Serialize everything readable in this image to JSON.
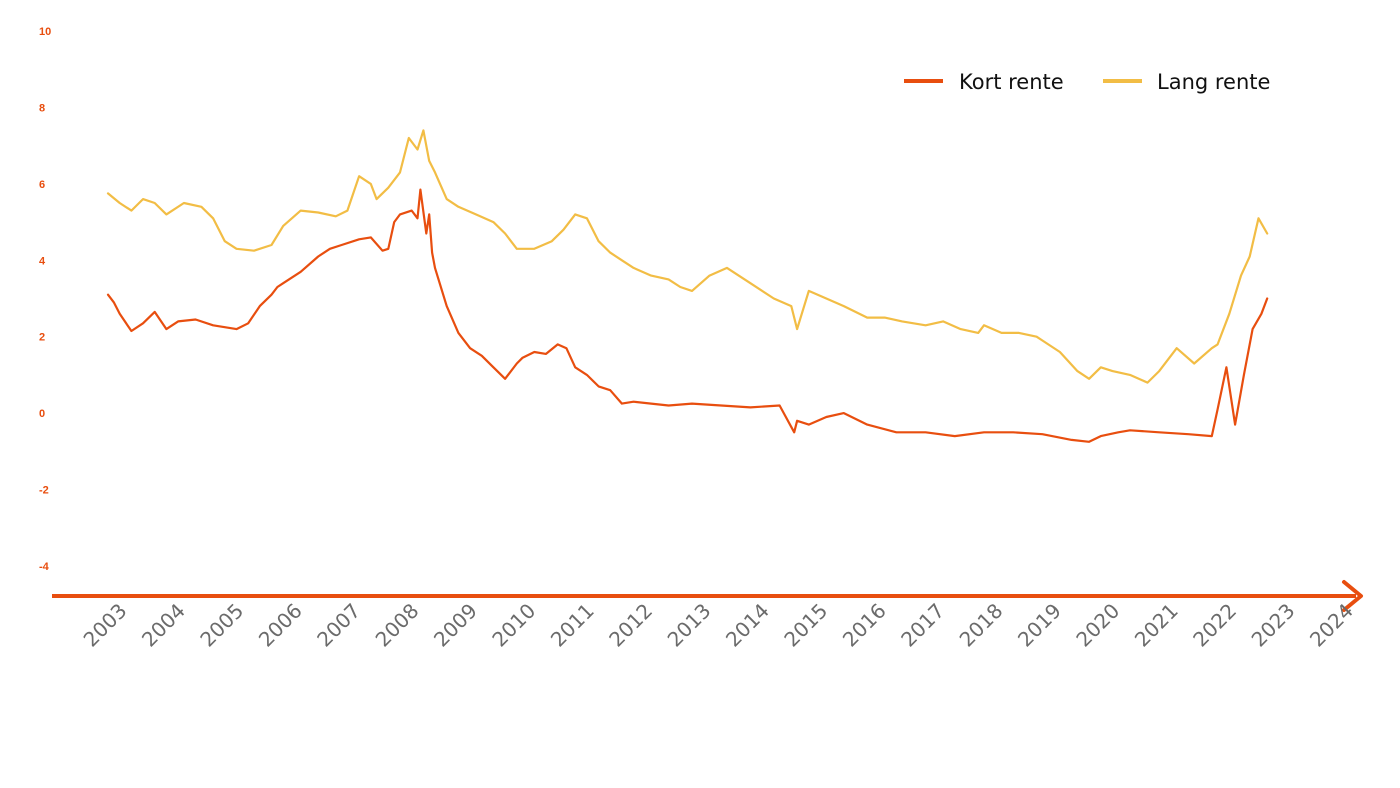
{
  "colors": {
    "accent": "#e84e0f",
    "kort": "#e84e0f",
    "lang": "#f2bd45",
    "x_tick_text": "#6b6b6b"
  },
  "chart_data": {
    "type": "line",
    "title": "",
    "xlabel": "",
    "ylabel": "",
    "ylim": [
      -4,
      10
    ],
    "xlim": [
      2003,
      2024
    ],
    "y_ticks": [
      "10",
      "8",
      "6",
      "4",
      "2",
      "0",
      "-2",
      "-4"
    ],
    "x_ticks": [
      "2003",
      "2004",
      "2005",
      "2006",
      "2007",
      "2008",
      "2009",
      "2010",
      "2011",
      "2012",
      "2013",
      "2014",
      "2015",
      "2016",
      "2017",
      "2018",
      "2019",
      "2020",
      "2021",
      "2022",
      "2023",
      "2024"
    ],
    "grid": false,
    "legend_position": "top-right",
    "series": [
      {
        "name": "Kort rente",
        "color": "#e84e0f",
        "x": [
          2003.0,
          2003.1,
          2003.2,
          2003.4,
          2003.6,
          2003.8,
          2004.0,
          2004.2,
          2004.5,
          2004.8,
          2005.0,
          2005.2,
          2005.4,
          2005.6,
          2005.8,
          2005.9,
          2006.0,
          2006.3,
          2006.6,
          2006.8,
          2007.0,
          2007.3,
          2007.5,
          2007.7,
          2007.8,
          2007.9,
          2008.0,
          2008.2,
          2008.3,
          2008.35,
          2008.45,
          2008.5,
          2008.55,
          2008.6,
          2008.8,
          2009.0,
          2009.2,
          2009.4,
          2009.6,
          2009.8,
          2010.0,
          2010.1,
          2010.3,
          2010.5,
          2010.7,
          2010.85,
          2011.0,
          2011.2,
          2011.4,
          2011.6,
          2011.8,
          2012.0,
          2012.3,
          2012.6,
          2013.0,
          2013.5,
          2014.0,
          2014.5,
          2014.75,
          2014.8,
          2015.0,
          2015.3,
          2015.6,
          2016.0,
          2016.5,
          2017.0,
          2017.5,
          2018.0,
          2018.5,
          2019.0,
          2019.5,
          2019.8,
          2020.0,
          2020.3,
          2020.5,
          2021.0,
          2021.5,
          2021.9,
          2022.0,
          2022.15,
          2022.3,
          2022.45,
          2022.6,
          2022.75,
          2022.85
        ],
        "values": [
          3.1,
          2.9,
          2.6,
          2.15,
          2.35,
          2.65,
          2.2,
          2.4,
          2.45,
          2.3,
          2.25,
          2.2,
          2.35,
          2.8,
          3.1,
          3.3,
          3.4,
          3.7,
          4.1,
          4.3,
          4.4,
          4.55,
          4.6,
          4.25,
          4.3,
          5.0,
          5.2,
          5.3,
          5.1,
          5.85,
          4.7,
          5.2,
          4.2,
          3.8,
          2.8,
          2.1,
          1.7,
          1.5,
          1.2,
          0.9,
          1.3,
          1.45,
          1.6,
          1.55,
          1.8,
          1.7,
          1.2,
          1.0,
          0.7,
          0.6,
          0.25,
          0.3,
          0.25,
          0.2,
          0.25,
          0.2,
          0.15,
          0.2,
          -0.5,
          -0.2,
          -0.3,
          -0.1,
          0.0,
          -0.3,
          -0.5,
          -0.5,
          -0.6,
          -0.5,
          -0.5,
          -0.55,
          -0.7,
          -0.75,
          -0.6,
          -0.5,
          -0.45,
          -0.5,
          -0.55,
          -0.6,
          0.1,
          1.2,
          -0.3,
          1.0,
          2.2,
          2.6,
          3.0
        ]
      },
      {
        "name": "Lang rente",
        "color": "#f2bd45",
        "x": [
          2003.0,
          2003.2,
          2003.4,
          2003.6,
          2003.8,
          2004.0,
          2004.3,
          2004.6,
          2004.8,
          2005.0,
          2005.2,
          2005.5,
          2005.8,
          2006.0,
          2006.3,
          2006.6,
          2006.9,
          2007.1,
          2007.3,
          2007.5,
          2007.6,
          2007.8,
          2008.0,
          2008.15,
          2008.3,
          2008.4,
          2008.5,
          2008.6,
          2008.8,
          2009.0,
          2009.3,
          2009.6,
          2009.8,
          2010.0,
          2010.3,
          2010.6,
          2010.8,
          2011.0,
          2011.2,
          2011.4,
          2011.6,
          2011.8,
          2012.0,
          2012.3,
          2012.6,
          2012.8,
          2013.0,
          2013.3,
          2013.6,
          2014.0,
          2014.4,
          2014.7,
          2014.8,
          2015.0,
          2015.3,
          2015.6,
          2016.0,
          2016.3,
          2016.6,
          2017.0,
          2017.3,
          2017.6,
          2017.9,
          2018.0,
          2018.3,
          2018.6,
          2018.9,
          2019.0,
          2019.3,
          2019.6,
          2019.8,
          2020.0,
          2020.2,
          2020.5,
          2020.8,
          2021.0,
          2021.3,
          2021.6,
          2021.9,
          2022.0,
          2022.2,
          2022.4,
          2022.55,
          2022.7,
          2022.85
        ],
        "values": [
          5.75,
          5.5,
          5.3,
          5.6,
          5.5,
          5.2,
          5.5,
          5.4,
          5.1,
          4.5,
          4.3,
          4.25,
          4.4,
          4.9,
          5.3,
          5.25,
          5.15,
          5.3,
          6.2,
          6.0,
          5.6,
          5.9,
          6.3,
          7.2,
          6.9,
          7.4,
          6.6,
          6.3,
          5.6,
          5.4,
          5.2,
          5.0,
          4.7,
          4.3,
          4.3,
          4.5,
          4.8,
          5.2,
          5.1,
          4.5,
          4.2,
          4.0,
          3.8,
          3.6,
          3.5,
          3.3,
          3.2,
          3.6,
          3.8,
          3.4,
          3.0,
          2.8,
          2.2,
          3.2,
          3.0,
          2.8,
          2.5,
          2.5,
          2.4,
          2.3,
          2.4,
          2.2,
          2.1,
          2.3,
          2.1,
          2.1,
          2.0,
          1.9,
          1.6,
          1.1,
          0.9,
          1.2,
          1.1,
          1.0,
          0.8,
          1.1,
          1.7,
          1.3,
          1.7,
          1.8,
          2.6,
          3.6,
          4.1,
          5.1,
          4.7
        ]
      }
    ]
  }
}
